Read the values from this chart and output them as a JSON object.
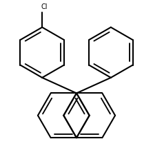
{
  "bg_color": "#ffffff",
  "line_color": "#000000",
  "lw": 1.5,
  "figsize": [
    2.22,
    2.18
  ],
  "dpi": 100,
  "Cl_label": "Cl",
  "Cl_fontsize": 7.0
}
